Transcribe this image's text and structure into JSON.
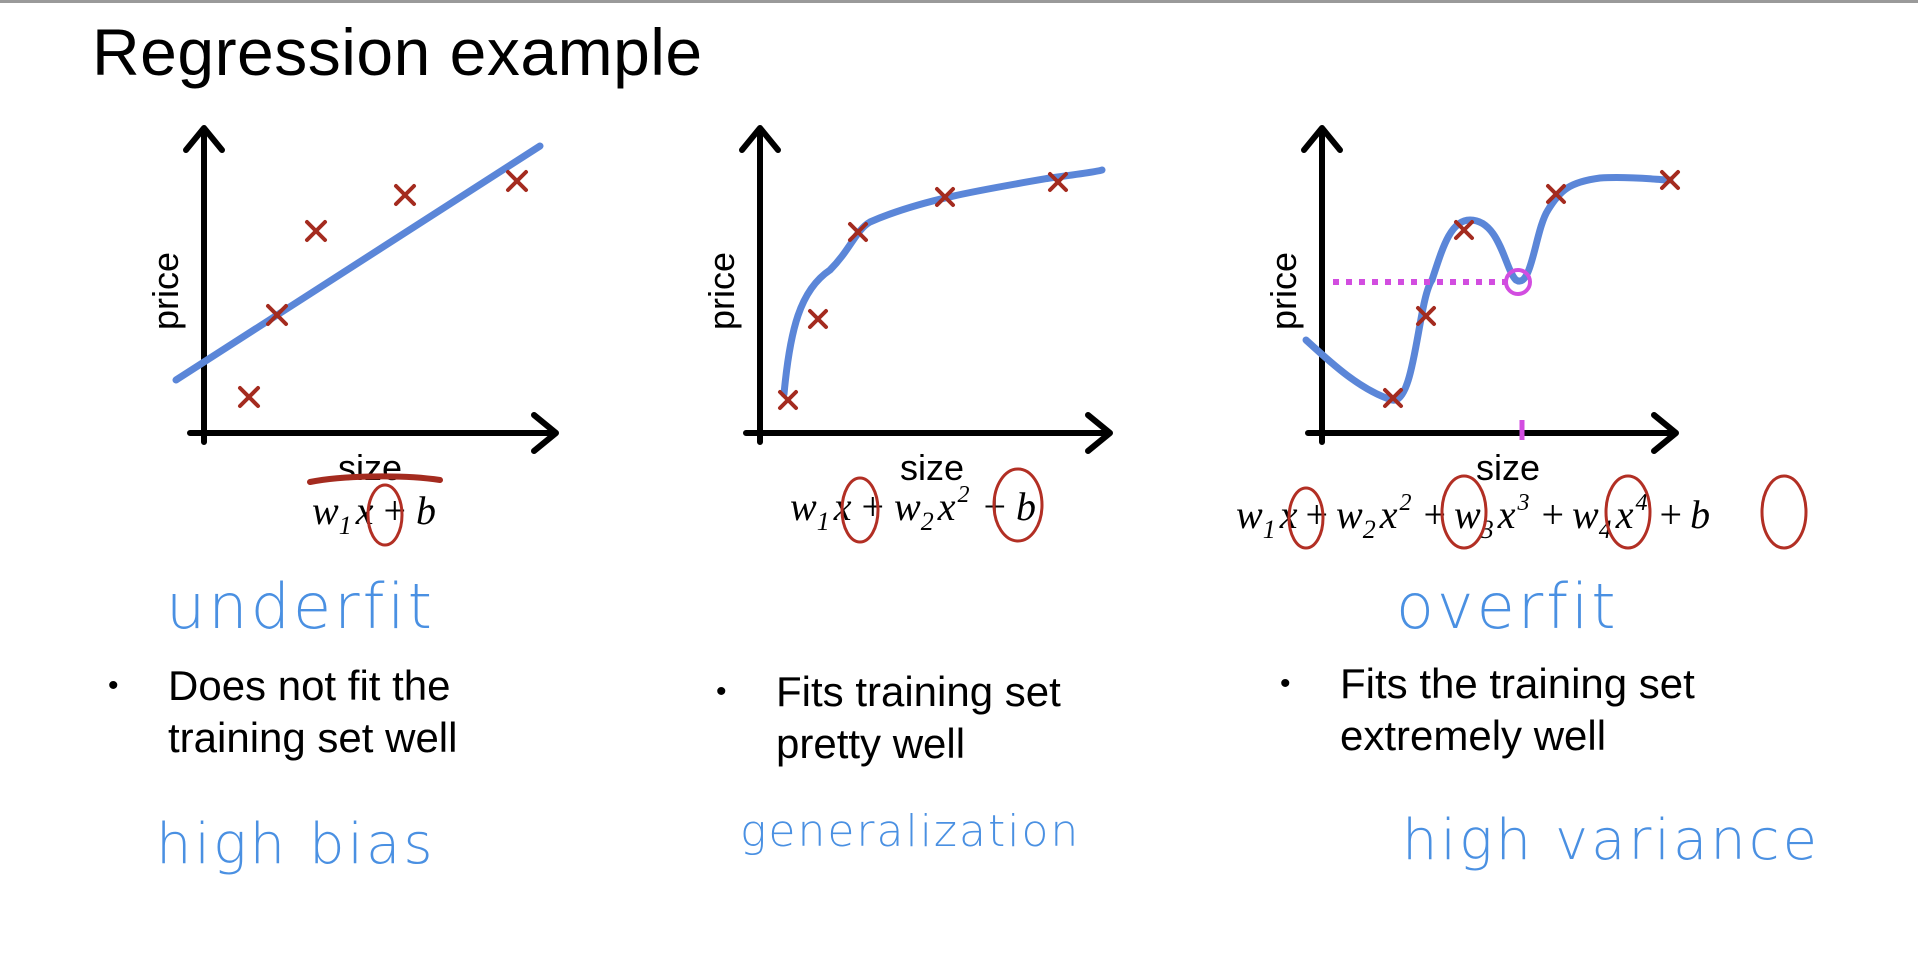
{
  "title": "Regression example",
  "colors": {
    "curve": "#5b86d8",
    "points": "#a42b1f",
    "handwriting": "#4a90e2",
    "highlight": "#d24de0"
  },
  "panels": [
    {
      "ylabel": "price",
      "xlabel": "size",
      "equation": {
        "parts": [
          "w",
          "1",
          "x",
          "+",
          "b"
        ]
      },
      "handwritten_label": "underfit",
      "bullet": [
        "Does not fit the",
        "training set well"
      ],
      "handwritten_note": "high bias"
    },
    {
      "ylabel": "price",
      "xlabel": "size",
      "equation": {
        "parts": [
          "w",
          "1",
          "x",
          "+",
          "w",
          "2",
          "x",
          "2",
          "+",
          "b"
        ]
      },
      "handwritten_label": "",
      "bullet": [
        "Fits training set",
        "pretty well"
      ],
      "handwritten_note": "generalization"
    },
    {
      "ylabel": "price",
      "xlabel": "size",
      "equation": {
        "parts": [
          "w",
          "1",
          "x",
          "+",
          "w",
          "2",
          "x",
          "2",
          "+",
          "w",
          "3",
          "x",
          "3",
          "+",
          "w",
          "4",
          "x",
          "4",
          "+",
          "b"
        ]
      },
      "handwritten_label": "overfit",
      "bullet": [
        "Fits the training set",
        "extremely well"
      ],
      "handwritten_note": "high variance"
    }
  ]
}
